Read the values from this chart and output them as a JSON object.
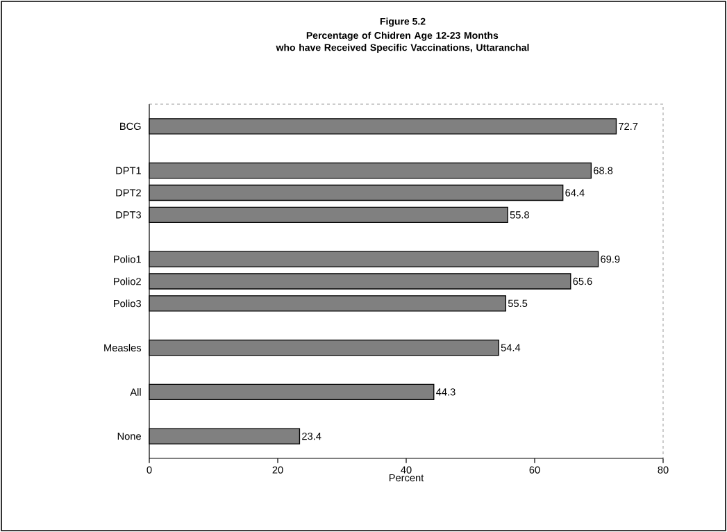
{
  "chart_data": {
    "type": "bar",
    "orientation": "horizontal",
    "title": "Figure 5.2",
    "subtitle": "Percentage  of Chidren Age 12-23 Months who have Received Specific Vaccinations, Uttaranchal",
    "categories": [
      "BCG",
      null,
      "DPT1",
      "DPT2",
      "DPT3",
      null,
      "Polio1",
      "Polio2",
      "Polio3",
      null,
      "Measles",
      null,
      "All",
      null,
      "None"
    ],
    "values": [
      72.7,
      null,
      68.8,
      64.4,
      55.8,
      null,
      69.9,
      65.6,
      55.5,
      null,
      54.4,
      null,
      44.3,
      null,
      23.4
    ],
    "color": "#808080",
    "xlabel": "Percent",
    "xlim": [
      0,
      80
    ],
    "xticks": [
      0,
      20,
      40,
      60,
      80
    ],
    "data_labels": true
  }
}
